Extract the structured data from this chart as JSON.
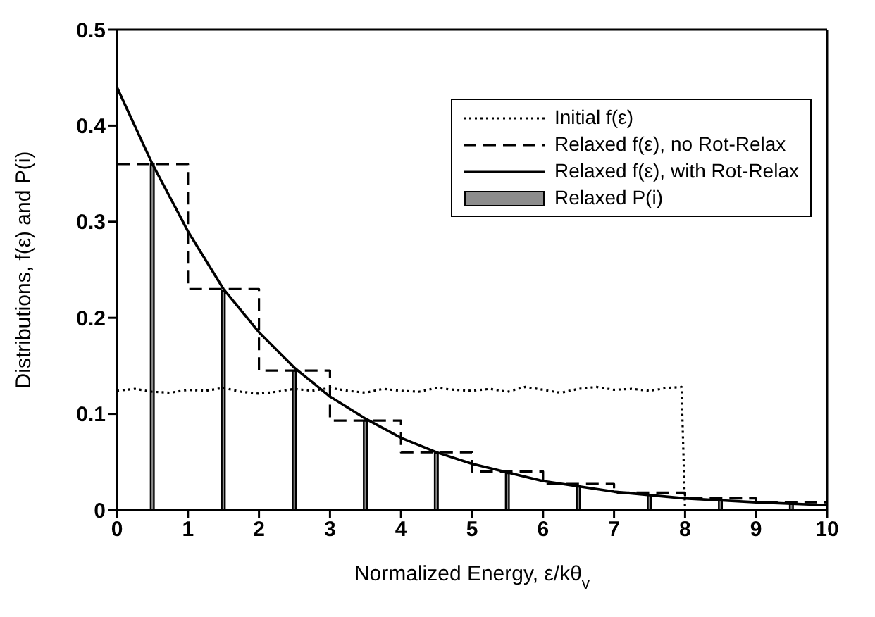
{
  "chart_data": {
    "type": "bar",
    "xlabel": "Normalized Energy, ε/kθ$_{v}$",
    "ylabel": "Distributions, f(ε) and P(i)",
    "xlim": [
      0,
      10
    ],
    "xticks": [
      0,
      1,
      2,
      3,
      4,
      5,
      6,
      7,
      8,
      9,
      10
    ],
    "ylim": [
      0,
      0.5
    ],
    "yticks": [
      0,
      0.1,
      0.2,
      0.3,
      0.4,
      0.5
    ],
    "grid": false,
    "legend": "top right",
    "marker": "none",
    "series": [
      {
        "name": "Initial f(ε)",
        "type": "line",
        "line_style": "dotted",
        "color": "#000000",
        "x": [
          0,
          0.25,
          0.5,
          0.75,
          1,
          1.25,
          1.5,
          1.75,
          2,
          2.25,
          2.5,
          2.75,
          3,
          3.25,
          3.5,
          3.75,
          4,
          4.25,
          4.5,
          4.75,
          5,
          5.25,
          5.5,
          5.75,
          6,
          6.25,
          6.5,
          6.75,
          7,
          7.25,
          7.5,
          7.75,
          7.95,
          8
        ],
        "values": [
          0.124,
          0.126,
          0.123,
          0.122,
          0.125,
          0.124,
          0.127,
          0.123,
          0.121,
          0.123,
          0.126,
          0.124,
          0.127,
          0.124,
          0.122,
          0.126,
          0.124,
          0.123,
          0.127,
          0.125,
          0.124,
          0.126,
          0.123,
          0.128,
          0.125,
          0.122,
          0.126,
          0.128,
          0.125,
          0.126,
          0.124,
          0.127,
          0.128,
          0
        ]
      },
      {
        "name": "Relaxed f(ε), no Rot-Relax",
        "type": "step",
        "line_style": "dashed",
        "color": "#000000",
        "x": [
          0,
          1,
          2,
          3,
          4,
          5,
          6,
          7,
          8,
          9,
          10
        ],
        "values": [
          0.36,
          0.23,
          0.145,
          0.093,
          0.06,
          0.04,
          0.027,
          0.018,
          0.012,
          0.008,
          0.008
        ]
      },
      {
        "name": "Relaxed f(ε), with Rot-Relax",
        "type": "line",
        "line_style": "solid",
        "color": "#000000",
        "x": [
          0,
          0.5,
          1,
          1.5,
          2,
          2.5,
          3,
          3.5,
          4,
          4.5,
          5,
          6,
          7,
          8,
          9,
          10
        ],
        "values": [
          0.44,
          0.36,
          0.29,
          0.23,
          0.185,
          0.148,
          0.118,
          0.095,
          0.075,
          0.06,
          0.048,
          0.03,
          0.019,
          0.012,
          0.008,
          0.005
        ]
      },
      {
        "name": "Relaxed P(i)",
        "color": "#8c8c8c",
        "x": [
          0.5,
          1.5,
          2.5,
          3.5,
          4.5,
          5.5,
          6.5,
          7.5,
          8.5,
          9.5
        ],
        "values": [
          0.36,
          0.228,
          0.145,
          0.093,
          0.059,
          0.038,
          0.025,
          0.016,
          0.01,
          0.006
        ]
      }
    ]
  }
}
